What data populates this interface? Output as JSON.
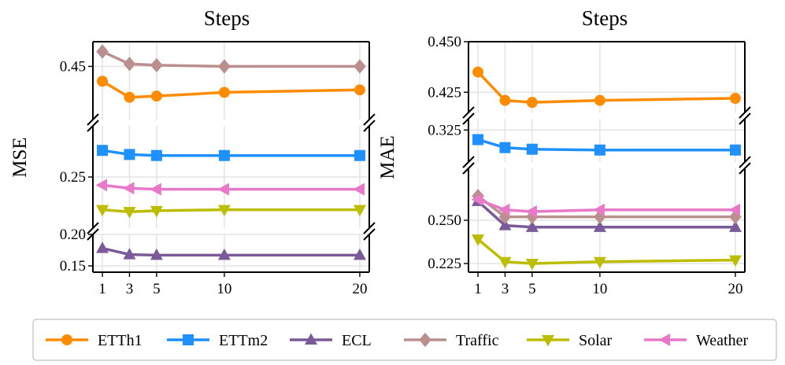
{
  "chart_data": [
    {
      "type": "line",
      "title": "Steps",
      "ylabel": "MSE",
      "x": [
        1,
        3,
        5,
        10,
        20
      ],
      "x_ticks": [
        "1",
        "3",
        "5",
        "10",
        "20"
      ],
      "broken_y_axis": true,
      "y_segments": [
        {
          "range": [
            0.14,
            0.2
          ],
          "ticks": [
            {
              "v": 0.15,
              "label": "0.15"
            },
            {
              "v": 0.2,
              "label": "0.20"
            }
          ]
        },
        {
          "range": [
            0.2,
            0.3
          ],
          "ticks": [
            {
              "v": 0.25,
              "label": "0.25"
            }
          ]
        },
        {
          "range": [
            0.407,
            0.47
          ],
          "ticks": [
            {
              "v": 0.45,
              "label": "0.45"
            }
          ]
        }
      ],
      "series": [
        {
          "name": "ETTh1",
          "values": [
            0.438,
            0.425,
            0.426,
            0.429,
            0.431
          ]
        },
        {
          "name": "ETTm2",
          "values": [
            0.276,
            0.272,
            0.271,
            0.271,
            0.271
          ]
        },
        {
          "name": "ECL",
          "values": [
            0.178,
            0.168,
            0.167,
            0.167,
            0.167
          ]
        },
        {
          "name": "Traffic",
          "values": [
            0.462,
            0.452,
            0.451,
            0.45,
            0.45
          ]
        },
        {
          "name": "Solar",
          "values": [
            0.218,
            0.216,
            0.217,
            0.218,
            0.218
          ]
        },
        {
          "name": "Weather",
          "values": [
            0.242,
            0.239,
            0.238,
            0.238,
            0.238
          ]
        }
      ]
    },
    {
      "type": "line",
      "title": "Steps",
      "ylabel": "MAE",
      "x": [
        1,
        3,
        5,
        10,
        20
      ],
      "x_ticks": [
        "1",
        "3",
        "5",
        "10",
        "20"
      ],
      "broken_y_axis": true,
      "y_segments": [
        {
          "range": [
            0.22,
            0.28
          ],
          "ticks": [
            {
              "v": 0.225,
              "label": "0.225"
            },
            {
              "v": 0.25,
              "label": "0.250"
            }
          ]
        },
        {
          "range": [
            0.305,
            0.332
          ],
          "ticks": [
            {
              "v": 0.325,
              "label": "0.325"
            }
          ]
        },
        {
          "range": [
            0.415,
            0.45
          ],
          "ticks": [
            {
              "v": 0.425,
              "label": "0.425"
            },
            {
              "v": 0.45,
              "label": "0.450"
            }
          ]
        }
      ],
      "series": [
        {
          "name": "ETTh1",
          "values": [
            0.435,
            0.421,
            0.42,
            0.421,
            0.422
          ]
        },
        {
          "name": "ETTm2",
          "values": [
            0.319,
            0.314,
            0.313,
            0.3125,
            0.3125
          ]
        },
        {
          "name": "ECL",
          "values": [
            0.261,
            0.247,
            0.246,
            0.246,
            0.246
          ]
        },
        {
          "name": "Traffic",
          "values": [
            0.264,
            0.252,
            0.252,
            0.252,
            0.252
          ]
        },
        {
          "name": "Solar",
          "values": [
            0.239,
            0.226,
            0.225,
            0.226,
            0.227
          ]
        },
        {
          "name": "Weather",
          "values": [
            0.262,
            0.256,
            0.255,
            0.256,
            0.256
          ]
        }
      ]
    }
  ],
  "legend": {
    "placement": "bottom",
    "items": [
      {
        "name": "ETTh1",
        "color": "#ff8c00",
        "marker": "circle"
      },
      {
        "name": "ETTm2",
        "color": "#1e90ff",
        "marker": "square"
      },
      {
        "name": "ECL",
        "color": "#7b5a9a",
        "marker": "triangle-up"
      },
      {
        "name": "Traffic",
        "color": "#bc8f8f",
        "marker": "diamond"
      },
      {
        "name": "Solar",
        "color": "#bdbd00",
        "marker": "triangle-down"
      },
      {
        "name": "Weather",
        "color": "#e879c8",
        "marker": "triangle-left"
      }
    ]
  }
}
